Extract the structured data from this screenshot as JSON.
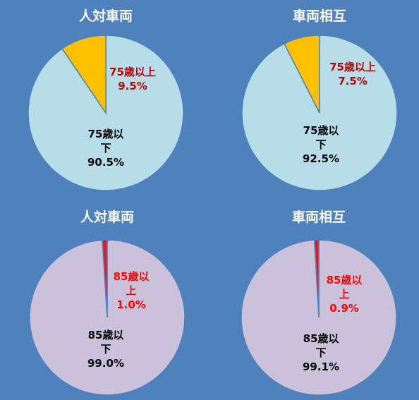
{
  "chart_data": [
    {
      "type": "pie",
      "title": "人対車両",
      "categories": [
        "75歳以下",
        "75歳以上"
      ],
      "values": [
        90.5,
        9.5
      ],
      "value_labels": [
        "90.5%",
        "9.5%"
      ],
      "colors": [
        "#b7dee8",
        "#ffc000"
      ],
      "label_colors": [
        "#000000",
        "#c00000"
      ]
    },
    {
      "type": "pie",
      "title": "車両相互",
      "categories": [
        "75歳以下",
        "75歳以上"
      ],
      "values": [
        92.5,
        7.5
      ],
      "value_labels": [
        "92.5%",
        "7.5%"
      ],
      "colors": [
        "#b7dee8",
        "#ffc000"
      ],
      "label_colors": [
        "#000000",
        "#c00000"
      ]
    },
    {
      "type": "pie",
      "title": "人対車両",
      "categories": [
        "85歳以下",
        "85歳以上"
      ],
      "values": [
        99.0,
        1.0
      ],
      "value_labels": [
        "99.0%",
        "1.0%"
      ],
      "colors": [
        "#ccc1da",
        "#e31a1c"
      ],
      "label_colors": [
        "#000000",
        "#ff0000"
      ]
    },
    {
      "type": "pie",
      "title": "車両相互",
      "categories": [
        "85歳以下",
        "85歳以上"
      ],
      "values": [
        99.1,
        0.9
      ],
      "value_labels": [
        "99.1%",
        "0.9%"
      ],
      "colors": [
        "#ccc1da",
        "#e31a1c"
      ],
      "label_colors": [
        "#000000",
        "#ff0000"
      ]
    }
  ]
}
